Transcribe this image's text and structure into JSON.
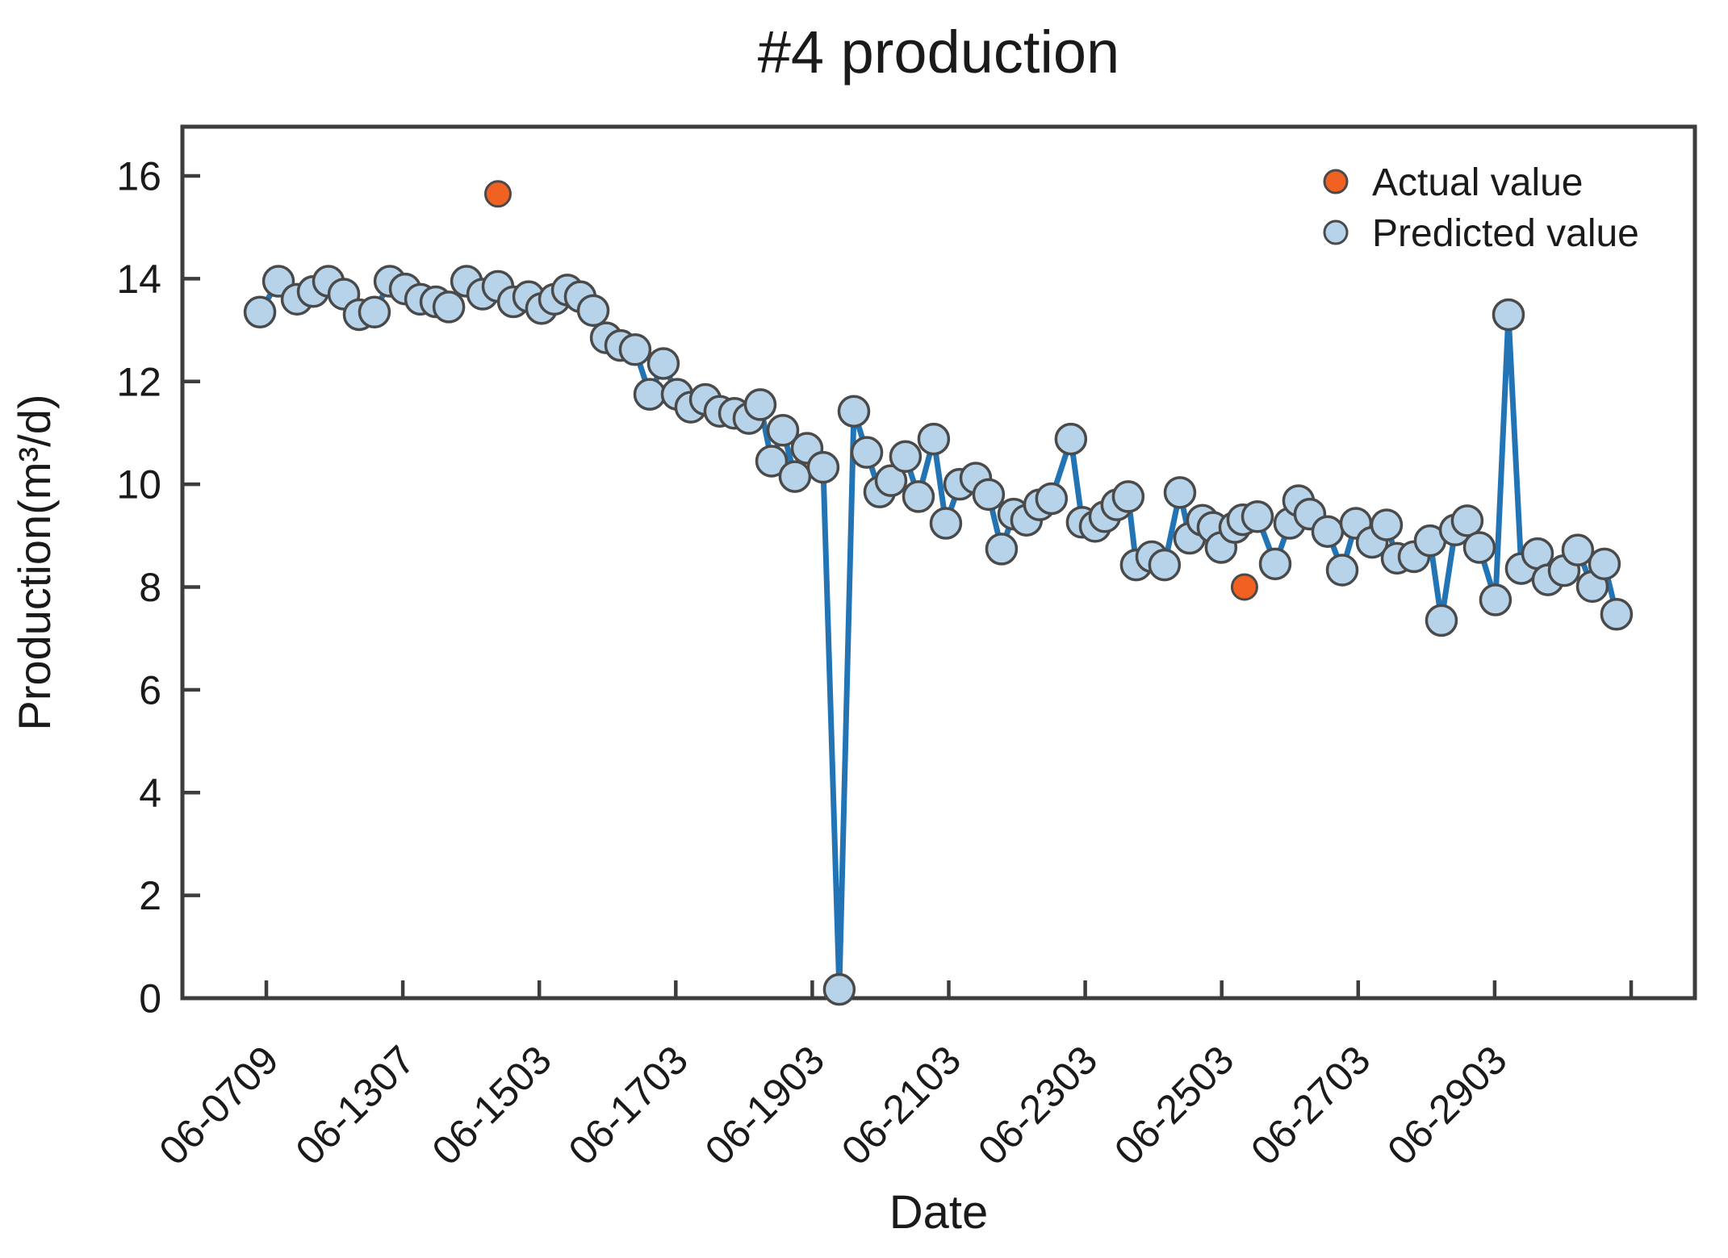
{
  "title": "#4 production",
  "axes": {
    "x_label": "Date",
    "y_label": "Production(m³/d)",
    "x_tick_labels": [
      "06-0709",
      "06-1307",
      "06-1503",
      "06-1703",
      "06-1903",
      "06-2103",
      "06-2303",
      "06-2503",
      "06-2703",
      "06-2903"
    ],
    "x_unlabeled_extra_ticks": 1,
    "y_ticks": [
      0,
      2,
      4,
      6,
      8,
      10,
      12,
      14,
      16
    ],
    "y_range": [
      0,
      16.95
    ]
  },
  "legend": {
    "actual_label": "Actual value",
    "predicted_label": "Predicted value"
  },
  "colors": {
    "actual_fill": "#f16122",
    "predicted_fill": "#b7d3e9",
    "marker_edge": "#4a4a4a",
    "line": "#2274b5",
    "axis": "#3d3d3d"
  },
  "chart_data": {
    "type": "line",
    "title": "#4 production",
    "xlabel": "Date",
    "ylabel": "Production(m³/d)",
    "ylim": [
      0,
      17
    ],
    "x_axis_note": "x given in tick units: 0 = 06-0709, 1 = 06-1307, ... 9 = 06-2903",
    "legend_position": "upper right",
    "grid": false,
    "series": [
      {
        "name": "Actual value",
        "mode": "scatter",
        "points": [
          [
            1.697,
            15.65
          ],
          [
            7.167,
            8.0
          ]
        ]
      },
      {
        "name": "Predicted value",
        "mode": "line+marker",
        "points": [
          [
            -0.047,
            13.35
          ],
          [
            0.089,
            13.95
          ],
          [
            0.225,
            13.6
          ],
          [
            0.343,
            13.75
          ],
          [
            0.455,
            13.95
          ],
          [
            0.568,
            13.7
          ],
          [
            0.68,
            13.3
          ],
          [
            0.792,
            13.35
          ],
          [
            0.905,
            13.95
          ],
          [
            1.017,
            13.8
          ],
          [
            1.13,
            13.6
          ],
          [
            1.242,
            13.55
          ],
          [
            1.337,
            13.45
          ],
          [
            1.467,
            13.95
          ],
          [
            1.585,
            13.7
          ],
          [
            1.697,
            13.85
          ],
          [
            1.81,
            13.55
          ],
          [
            1.922,
            13.65
          ],
          [
            2.016,
            13.42
          ],
          [
            2.111,
            13.6
          ],
          [
            2.206,
            13.78
          ],
          [
            2.3,
            13.65
          ],
          [
            2.395,
            13.38
          ],
          [
            2.49,
            12.85
          ],
          [
            2.596,
            12.7
          ],
          [
            2.702,
            12.62
          ],
          [
            2.809,
            11.75
          ],
          [
            2.909,
            12.35
          ],
          [
            3.01,
            11.75
          ],
          [
            3.11,
            11.5
          ],
          [
            3.217,
            11.65
          ],
          [
            3.323,
            11.42
          ],
          [
            3.43,
            11.38
          ],
          [
            3.536,
            11.28
          ],
          [
            3.619,
            11.55
          ],
          [
            3.702,
            10.45
          ],
          [
            3.785,
            11.05
          ],
          [
            3.873,
            10.15
          ],
          [
            3.962,
            10.7
          ],
          [
            4.08,
            10.33
          ],
          [
            4.198,
            0.17
          ],
          [
            4.305,
            11.42
          ],
          [
            4.4,
            10.62
          ],
          [
            4.494,
            9.85
          ],
          [
            4.577,
            10.07
          ],
          [
            4.683,
            10.54
          ],
          [
            4.778,
            9.76
          ],
          [
            4.89,
            10.88
          ],
          [
            4.979,
            9.24
          ],
          [
            5.08,
            10.0
          ],
          [
            5.198,
            10.12
          ],
          [
            5.292,
            9.8
          ],
          [
            5.387,
            8.74
          ],
          [
            5.476,
            9.42
          ],
          [
            5.57,
            9.3
          ],
          [
            5.665,
            9.6
          ],
          [
            5.753,
            9.72
          ],
          [
            5.895,
            10.88
          ],
          [
            5.978,
            9.26
          ],
          [
            6.073,
            9.18
          ],
          [
            6.144,
            9.37
          ],
          [
            6.232,
            9.6
          ],
          [
            6.315,
            9.76
          ],
          [
            6.374,
            8.43
          ],
          [
            6.487,
            8.59
          ],
          [
            6.581,
            8.43
          ],
          [
            6.694,
            9.84
          ],
          [
            6.765,
            8.95
          ],
          [
            6.859,
            9.3
          ],
          [
            6.936,
            9.16
          ],
          [
            6.995,
            8.77
          ],
          [
            7.096,
            9.16
          ],
          [
            7.155,
            9.31
          ],
          [
            7.262,
            9.37
          ],
          [
            7.392,
            8.45
          ],
          [
            7.498,
            9.24
          ],
          [
            7.563,
            9.68
          ],
          [
            7.646,
            9.42
          ],
          [
            7.776,
            9.08
          ],
          [
            7.883,
            8.33
          ],
          [
            7.983,
            9.24
          ],
          [
            8.102,
            8.87
          ],
          [
            8.208,
            9.21
          ],
          [
            8.285,
            8.56
          ],
          [
            8.409,
            8.59
          ],
          [
            8.527,
            8.9
          ],
          [
            8.61,
            7.35
          ],
          [
            8.711,
            9.11
          ],
          [
            8.799,
            9.29
          ],
          [
            8.888,
            8.77
          ],
          [
            9.006,
            7.75
          ],
          [
            9.101,
            13.3
          ],
          [
            9.195,
            8.36
          ],
          [
            9.314,
            8.65
          ],
          [
            9.39,
            8.14
          ],
          [
            9.509,
            8.32
          ],
          [
            9.609,
            8.72
          ],
          [
            9.716,
            8.01
          ],
          [
            9.804,
            8.45
          ],
          [
            9.893,
            7.47
          ]
        ]
      }
    ]
  }
}
